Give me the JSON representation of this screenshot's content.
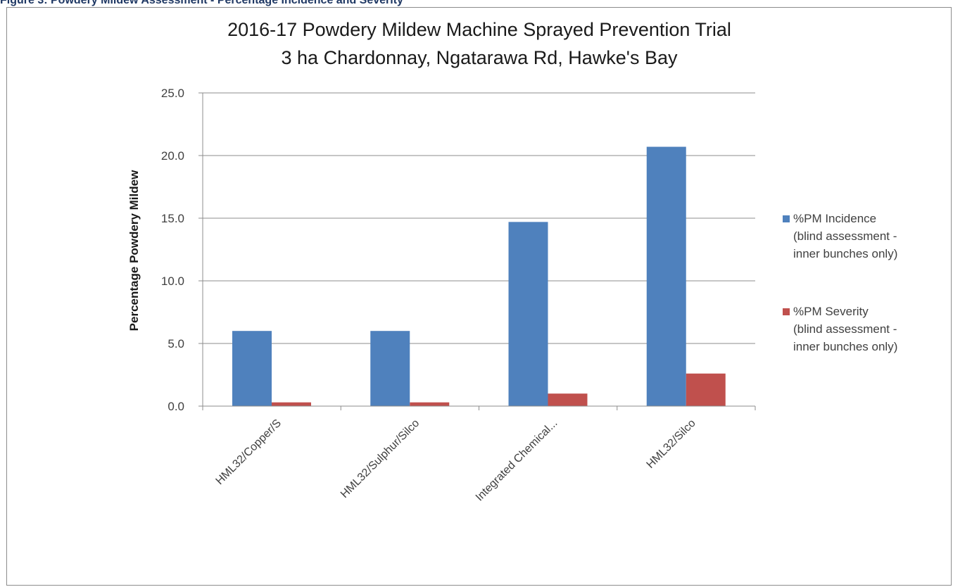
{
  "figure_caption": "Figure 3: Powdery Mildew Assessment - Percentage Incidence and Severity",
  "chart_data": {
    "type": "bar",
    "title": [
      "2016-17 Powdery Mildew Machine Sprayed Prevention Trial",
      "3 ha Chardonnay,  Ngatarawa Rd, Hawke's Bay"
    ],
    "xlabel": "",
    "ylabel": "Percentage Powdery Mildew",
    "ylim": [
      0,
      25
    ],
    "yticks": [
      "0.0",
      "5.0",
      "10.0",
      "15.0",
      "20.0",
      "25.0"
    ],
    "ytick_values": [
      0,
      5,
      10,
      15,
      20,
      25
    ],
    "grid": true,
    "legend_position": "right",
    "categories": [
      "HML32/Copper/S",
      "HML32/Sulphur/Silco",
      "Integrated Chemical...",
      "HML32/Silco"
    ],
    "series": [
      {
        "name": "%PM Incidence (blind assessment - inner bunches only)",
        "legend_lines": [
          "%PM Incidence",
          "(blind assessment -",
          "inner bunches only)"
        ],
        "color": "#4f81bd",
        "values": [
          6.0,
          6.0,
          14.7,
          20.7
        ]
      },
      {
        "name": "%PM Severity (blind assessment - inner bunches only)",
        "legend_lines": [
          "%PM Severity",
          "(blind assessment -",
          "inner bunches only)"
        ],
        "color": "#c0504d",
        "values": [
          0.3,
          0.3,
          1.0,
          2.6
        ]
      }
    ]
  }
}
